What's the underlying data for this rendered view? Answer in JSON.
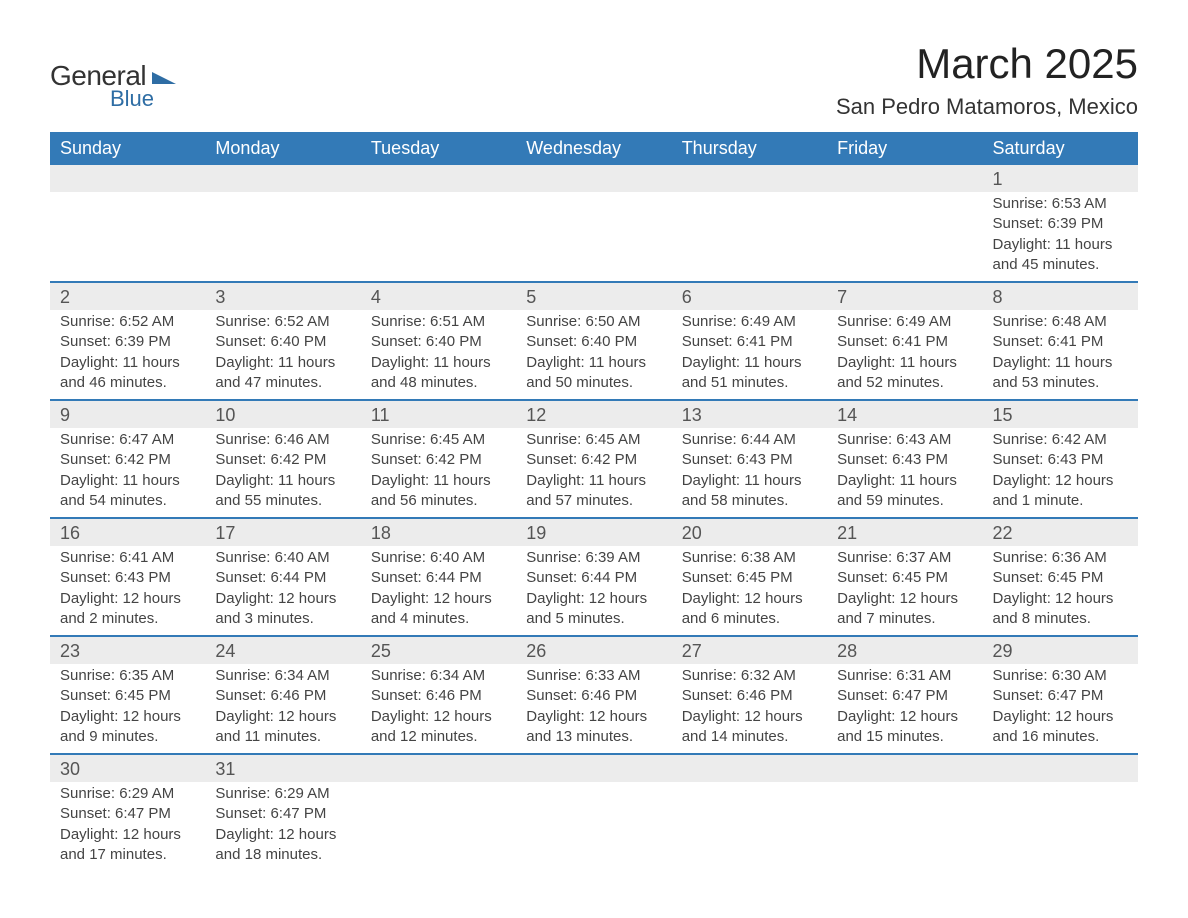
{
  "logo": {
    "line1": "General",
    "line2": "Blue"
  },
  "title": "March 2025",
  "location": "San Pedro Matamoros, Mexico",
  "colors": {
    "header_bg": "#337ab7",
    "header_text": "#ffffff",
    "daynum_bg": "#ececec",
    "row_border": "#337ab7",
    "body_text": "#444444",
    "logo_dark": "#333333",
    "logo_blue": "#2e6da4"
  },
  "type": "calendar-table",
  "day_labels": [
    "Sunday",
    "Monday",
    "Tuesday",
    "Wednesday",
    "Thursday",
    "Friday",
    "Saturday"
  ],
  "weeks": [
    {
      "nums": [
        "",
        "",
        "",
        "",
        "",
        "",
        "1"
      ],
      "info": [
        "",
        "",
        "",
        "",
        "",
        "",
        "Sunrise: 6:53 AM\nSunset: 6:39 PM\nDaylight: 11 hours and 45 minutes."
      ]
    },
    {
      "nums": [
        "2",
        "3",
        "4",
        "5",
        "6",
        "7",
        "8"
      ],
      "info": [
        "Sunrise: 6:52 AM\nSunset: 6:39 PM\nDaylight: 11 hours and 46 minutes.",
        "Sunrise: 6:52 AM\nSunset: 6:40 PM\nDaylight: 11 hours and 47 minutes.",
        "Sunrise: 6:51 AM\nSunset: 6:40 PM\nDaylight: 11 hours and 48 minutes.",
        "Sunrise: 6:50 AM\nSunset: 6:40 PM\nDaylight: 11 hours and 50 minutes.",
        "Sunrise: 6:49 AM\nSunset: 6:41 PM\nDaylight: 11 hours and 51 minutes.",
        "Sunrise: 6:49 AM\nSunset: 6:41 PM\nDaylight: 11 hours and 52 minutes.",
        "Sunrise: 6:48 AM\nSunset: 6:41 PM\nDaylight: 11 hours and 53 minutes."
      ]
    },
    {
      "nums": [
        "9",
        "10",
        "11",
        "12",
        "13",
        "14",
        "15"
      ],
      "info": [
        "Sunrise: 6:47 AM\nSunset: 6:42 PM\nDaylight: 11 hours and 54 minutes.",
        "Sunrise: 6:46 AM\nSunset: 6:42 PM\nDaylight: 11 hours and 55 minutes.",
        "Sunrise: 6:45 AM\nSunset: 6:42 PM\nDaylight: 11 hours and 56 minutes.",
        "Sunrise: 6:45 AM\nSunset: 6:42 PM\nDaylight: 11 hours and 57 minutes.",
        "Sunrise: 6:44 AM\nSunset: 6:43 PM\nDaylight: 11 hours and 58 minutes.",
        "Sunrise: 6:43 AM\nSunset: 6:43 PM\nDaylight: 11 hours and 59 minutes.",
        "Sunrise: 6:42 AM\nSunset: 6:43 PM\nDaylight: 12 hours and 1 minute."
      ]
    },
    {
      "nums": [
        "16",
        "17",
        "18",
        "19",
        "20",
        "21",
        "22"
      ],
      "info": [
        "Sunrise: 6:41 AM\nSunset: 6:43 PM\nDaylight: 12 hours and 2 minutes.",
        "Sunrise: 6:40 AM\nSunset: 6:44 PM\nDaylight: 12 hours and 3 minutes.",
        "Sunrise: 6:40 AM\nSunset: 6:44 PM\nDaylight: 12 hours and 4 minutes.",
        "Sunrise: 6:39 AM\nSunset: 6:44 PM\nDaylight: 12 hours and 5 minutes.",
        "Sunrise: 6:38 AM\nSunset: 6:45 PM\nDaylight: 12 hours and 6 minutes.",
        "Sunrise: 6:37 AM\nSunset: 6:45 PM\nDaylight: 12 hours and 7 minutes.",
        "Sunrise: 6:36 AM\nSunset: 6:45 PM\nDaylight: 12 hours and 8 minutes."
      ]
    },
    {
      "nums": [
        "23",
        "24",
        "25",
        "26",
        "27",
        "28",
        "29"
      ],
      "info": [
        "Sunrise: 6:35 AM\nSunset: 6:45 PM\nDaylight: 12 hours and 9 minutes.",
        "Sunrise: 6:34 AM\nSunset: 6:46 PM\nDaylight: 12 hours and 11 minutes.",
        "Sunrise: 6:34 AM\nSunset: 6:46 PM\nDaylight: 12 hours and 12 minutes.",
        "Sunrise: 6:33 AM\nSunset: 6:46 PM\nDaylight: 12 hours and 13 minutes.",
        "Sunrise: 6:32 AM\nSunset: 6:46 PM\nDaylight: 12 hours and 14 minutes.",
        "Sunrise: 6:31 AM\nSunset: 6:47 PM\nDaylight: 12 hours and 15 minutes.",
        "Sunrise: 6:30 AM\nSunset: 6:47 PM\nDaylight: 12 hours and 16 minutes."
      ]
    },
    {
      "nums": [
        "30",
        "31",
        "",
        "",
        "",
        "",
        ""
      ],
      "info": [
        "Sunrise: 6:29 AM\nSunset: 6:47 PM\nDaylight: 12 hours and 17 minutes.",
        "Sunrise: 6:29 AM\nSunset: 6:47 PM\nDaylight: 12 hours and 18 minutes.",
        "",
        "",
        "",
        "",
        ""
      ]
    }
  ]
}
